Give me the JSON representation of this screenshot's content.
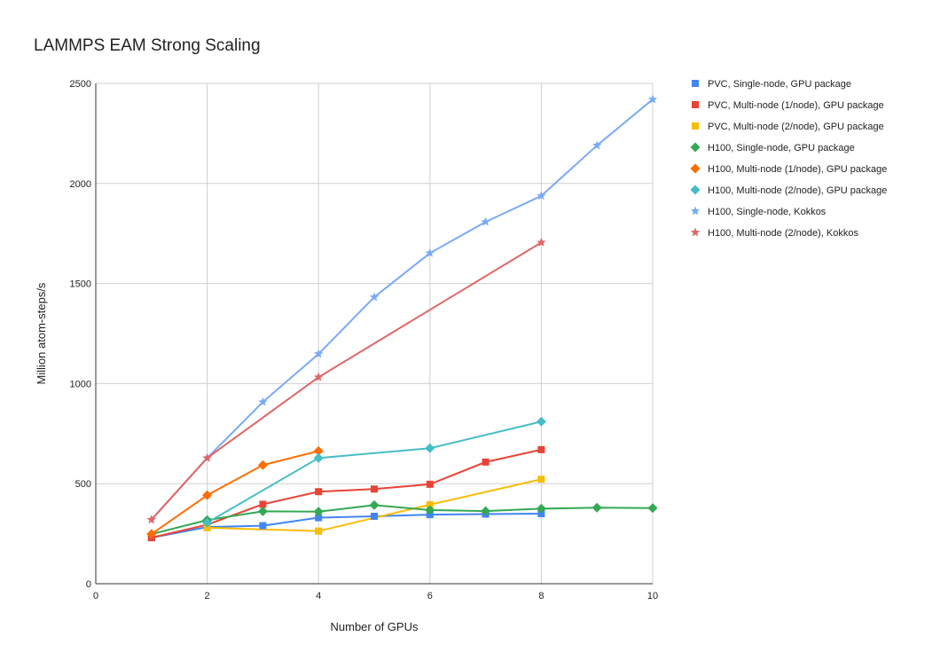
{
  "chart_data": {
    "type": "line",
    "title": "LAMMPS EAM Strong Scaling",
    "xlabel": "Number of GPUs",
    "ylabel": "Million atom-steps/s",
    "xlim": [
      0,
      10
    ],
    "ylim": [
      0,
      2500
    ],
    "xticks": [
      "0",
      "2",
      "4",
      "6",
      "8",
      "10"
    ],
    "yticks": [
      "0",
      "500",
      "1000",
      "1500",
      "2000",
      "2500"
    ],
    "grid": true,
    "legend_position": "right",
    "series": [
      {
        "name": "PVC, Single-node, GPU package",
        "color": "#4285f4",
        "marker": "square",
        "x": [
          1,
          2,
          3,
          4,
          5,
          6,
          7,
          8
        ],
        "y": [
          230,
          283,
          290,
          330,
          337,
          345,
          348,
          350
        ]
      },
      {
        "name": "PVC, Multi-node (1/node), GPU package",
        "color": "#ea4335",
        "marker": "square",
        "x": [
          1,
          2,
          3,
          4,
          5,
          6,
          7,
          8
        ],
        "y": [
          230,
          295,
          397,
          460,
          473,
          497,
          608,
          670
        ]
      },
      {
        "name": "PVC, Multi-node (2/node), GPU package",
        "color": "#fbbc04",
        "marker": "square",
        "x": [
          2,
          4,
          6,
          8
        ],
        "y": [
          280,
          263,
          395,
          522
        ]
      },
      {
        "name": "H100, Single-node, GPU package",
        "color": "#34a853",
        "marker": "diamond",
        "x": [
          1,
          2,
          3,
          4,
          5,
          6,
          7,
          8,
          9,
          10
        ],
        "y": [
          248,
          318,
          362,
          360,
          393,
          368,
          363,
          375,
          380,
          378
        ]
      },
      {
        "name": "H100, Multi-node (1/node), GPU package",
        "color": "#ff6d01",
        "marker": "diamond",
        "x": [
          1,
          2,
          3,
          4
        ],
        "y": [
          248,
          442,
          593,
          663
        ]
      },
      {
        "name": "H100, Multi-node (2/node), GPU package",
        "color": "#46bdc6",
        "marker": "diamond",
        "x": [
          2,
          4,
          6,
          8
        ],
        "y": [
          305,
          628,
          677,
          810
        ]
      },
      {
        "name": "H100, Single-node, Kokkos",
        "color": "#7baaf7",
        "marker": "star",
        "x": [
          1,
          2,
          3,
          4,
          5,
          6,
          7,
          8,
          9,
          10
        ],
        "y": [
          320,
          628,
          908,
          1148,
          1432,
          1652,
          1808,
          1938,
          2190,
          2420
        ]
      },
      {
        "name": "H100, Multi-node (2/node), Kokkos",
        "color": "#e06666",
        "marker": "star",
        "x": [
          1,
          2,
          4,
          8
        ],
        "y": [
          320,
          628,
          1032,
          1705
        ]
      }
    ]
  }
}
